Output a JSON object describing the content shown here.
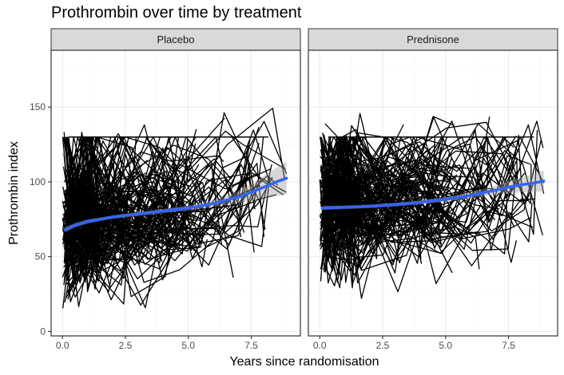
{
  "chart_data": {
    "type": "line",
    "title": "Prothrombin over time by treatment",
    "xlabel": "Years since randomisation",
    "ylabel": "Prothrombin index",
    "xlim": [
      -0.45,
      9.45
    ],
    "ylim": [
      -3,
      188
    ],
    "x_ticks": [
      0,
      2.5,
      5,
      7.5
    ],
    "x_tick_labels": [
      "0.0",
      "2.5",
      "5.0",
      "7.5"
    ],
    "y_ticks": [
      0,
      50,
      100,
      150
    ],
    "y_tick_labels": [
      "0",
      "50",
      "100",
      "150"
    ],
    "grid": true,
    "colors": {
      "lines": "#000000",
      "smooth": "#3366FF",
      "ribbon": "#999999",
      "panel_border": "#333333",
      "strip_fill": "#D9D9D9",
      "grid_major": "#EBEBEB",
      "grid_minor": "#F5F5F5"
    },
    "panels": [
      {
        "name": "Placebo",
        "smooth": {
          "x": [
            0.1,
            0.5,
            1,
            1.5,
            2,
            3,
            4,
            5,
            6,
            7,
            7.5,
            8,
            8.5,
            8.9
          ],
          "y": [
            68,
            71,
            73.5,
            75,
            76.5,
            78.5,
            80.5,
            82.5,
            85.5,
            90,
            93,
            96.5,
            100,
            102.5
          ],
          "lower": [
            66,
            69.5,
            72,
            73.8,
            75.3,
            77.2,
            79,
            80.8,
            83.2,
            86,
            87.5,
            89,
            90.5,
            91.5
          ],
          "upper": [
            70,
            72.5,
            75,
            76.2,
            77.7,
            79.8,
            82,
            84.2,
            87.8,
            94,
            98.5,
            104,
            109.5,
            113.5
          ]
        },
        "line_seed": 11
      },
      {
        "name": "Prednisone",
        "smooth": {
          "x": [
            0.1,
            0.5,
            1,
            1.5,
            2,
            3,
            4,
            5,
            6,
            7,
            7.5,
            8,
            8.5,
            8.9
          ],
          "y": [
            82.5,
            82.8,
            83,
            83.3,
            83.7,
            84.8,
            86.3,
            88.3,
            91,
            94.5,
            96.5,
            98,
            99.3,
            100.5
          ],
          "lower": [
            81,
            81.5,
            81.8,
            82.1,
            82.5,
            83.5,
            84.9,
            86.7,
            89,
            91.5,
            92.5,
            93,
            93.3,
            93.5
          ],
          "upper": [
            84,
            84.1,
            84.2,
            84.5,
            84.9,
            86.1,
            87.7,
            89.9,
            93,
            97.5,
            100.5,
            103,
            105.3,
            107.5
          ]
        },
        "line_seed": 29
      }
    ]
  }
}
